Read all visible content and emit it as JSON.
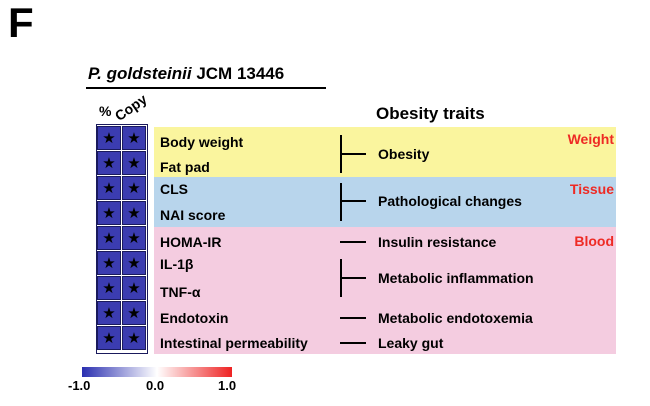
{
  "panel_letter": "F",
  "species": {
    "italic": "P. goldsteinii",
    "strain": "JCM 13446"
  },
  "heatmap": {
    "column_labels": [
      "%",
      "Copy"
    ],
    "fill_color": "#3b3cb0",
    "rows": [
      [
        "★",
        "★"
      ],
      [
        "★",
        "★"
      ],
      [
        "★",
        "★"
      ],
      [
        "★",
        "★"
      ],
      [
        "★",
        "★"
      ],
      [
        "★",
        "★"
      ],
      [
        "★",
        "★"
      ],
      [
        "★",
        "★"
      ],
      [
        "★",
        "★"
      ]
    ]
  },
  "traits_title": "Obesity traits",
  "categories": [
    {
      "label": "Weight",
      "color": "#faf59e"
    },
    {
      "label": "Tissue",
      "color": "#b8d5ec"
    },
    {
      "label": "Blood",
      "color": "#f4cce0"
    }
  ],
  "traits": [
    "Body weight",
    "Fat pad",
    "CLS",
    "NAI score",
    "HOMA-IR",
    "IL-1β",
    "TNF-α",
    "Endotoxin",
    "Intestinal permeability"
  ],
  "outcomes": [
    "Obesity",
    "Pathological changes",
    "Insulin resistance",
    "Metabolic inflammation",
    "Metabolic endotoxemia",
    "Leaky gut"
  ],
  "colorbar": {
    "min": "-1.0",
    "mid": "0.0",
    "max": "1.0",
    "low_color": "#2a2fb0",
    "high_color": "#ee2222"
  }
}
